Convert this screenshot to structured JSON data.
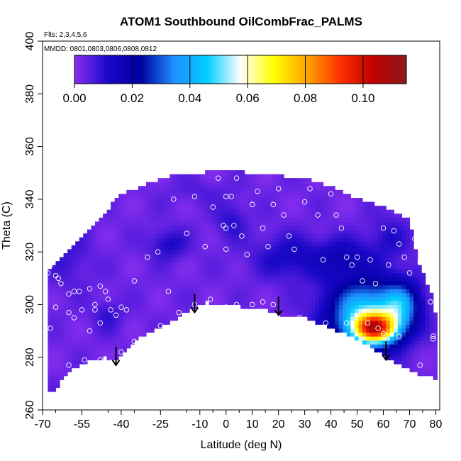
{
  "chart_data": {
    "type": "heatmap",
    "title": "ATOM1 Southbound OilCombFrac_PALMS",
    "flights_label": "Flts: 2,3,4,5,6",
    "mmdd_label": "MMDD: 0801,0803,0806,0808,0812",
    "xlabel": "Latitude (deg N)",
    "ylabel": "Theta (C)",
    "xlim": [
      -70,
      80
    ],
    "ylim": [
      260,
      400
    ],
    "x_ticks": [
      -70,
      -55,
      -40,
      -25,
      -10,
      0,
      10,
      20,
      30,
      40,
      50,
      60,
      70,
      80
    ],
    "y_ticks": [
      260,
      280,
      300,
      320,
      340,
      360,
      380,
      400
    ],
    "colorbar": {
      "min": 0.0,
      "max": 0.115,
      "ticks": [
        0.0,
        0.02,
        0.04,
        0.06,
        0.08,
        0.1
      ],
      "tick_labels": [
        "0.00",
        "0.02",
        "0.04",
        "0.06",
        "0.08",
        "0.10"
      ],
      "colors": [
        "#8c2ff0",
        "#1a08c8",
        "#0000a0",
        "#1e90ff",
        "#00cfff",
        "#ffffff",
        "#ffff00",
        "#ffa500",
        "#ff3000",
        "#c00000",
        "#8b1a1a"
      ]
    },
    "field_background_value": 0.003,
    "anomalies": [
      {
        "lat": 57,
        "theta": 291,
        "value": 0.075,
        "spread_lat": 6,
        "spread_theta": 4
      },
      {
        "lat": 53,
        "theta": 297,
        "value": 0.045,
        "spread_lat": 10,
        "spread_theta": 9
      },
      {
        "lat": 67,
        "theta": 300,
        "value": 0.03,
        "spread_lat": 5,
        "spread_theta": 6
      },
      {
        "lat": 25,
        "theta": 318,
        "value": 0.013,
        "spread_lat": 10,
        "spread_theta": 6
      },
      {
        "lat": 45,
        "theta": 318,
        "value": 0.014,
        "spread_lat": 7,
        "spread_theta": 5
      },
      {
        "lat": -22,
        "theta": 323,
        "value": 0.012,
        "spread_lat": 5,
        "spread_theta": 4
      },
      {
        "lat": 2,
        "theta": 332,
        "value": 0.01,
        "spread_lat": 4,
        "spread_theta": 5
      },
      {
        "lat": -60,
        "theta": 318,
        "value": 0.008,
        "spread_lat": 6,
        "spread_theta": 8
      },
      {
        "lat": 62,
        "theta": 325,
        "value": 0.01,
        "spread_lat": 6,
        "spread_theta": 6
      },
      {
        "lat": -45,
        "theta": 296,
        "value": 0.009,
        "spread_lat": 4,
        "spread_theta": 4
      },
      {
        "lat": -10,
        "theta": 343,
        "value": 0.006,
        "spread_lat": 8,
        "spread_theta": 3
      }
    ],
    "domain_top": [
      {
        "lat": -68,
        "theta": 313
      },
      {
        "lat": -62,
        "theta": 318
      },
      {
        "lat": -55,
        "theta": 325
      },
      {
        "lat": -48,
        "theta": 333
      },
      {
        "lat": -40,
        "theta": 342
      },
      {
        "lat": -32,
        "theta": 345
      },
      {
        "lat": -20,
        "theta": 349
      },
      {
        "lat": 0,
        "theta": 351
      },
      {
        "lat": 20,
        "theta": 349
      },
      {
        "lat": 35,
        "theta": 347
      },
      {
        "lat": 48,
        "theta": 341
      },
      {
        "lat": 60,
        "theta": 337
      },
      {
        "lat": 70,
        "theta": 332
      },
      {
        "lat": 73,
        "theta": 317
      },
      {
        "lat": 78,
        "theta": 305
      },
      {
        "lat": 80,
        "theta": 295
      }
    ],
    "domain_bottom": [
      {
        "lat": -68,
        "theta": 266
      },
      {
        "lat": -65,
        "theta": 268
      },
      {
        "lat": -60,
        "theta": 275
      },
      {
        "lat": -52,
        "theta": 279
      },
      {
        "lat": -46,
        "theta": 280
      },
      {
        "lat": -42,
        "theta": 278
      },
      {
        "lat": -38,
        "theta": 283
      },
      {
        "lat": -32,
        "theta": 288
      },
      {
        "lat": -22,
        "theta": 293
      },
      {
        "lat": -14,
        "theta": 298
      },
      {
        "lat": -8,
        "theta": 301
      },
      {
        "lat": 0,
        "theta": 300
      },
      {
        "lat": 8,
        "theta": 299
      },
      {
        "lat": 16,
        "theta": 298
      },
      {
        "lat": 22,
        "theta": 296
      },
      {
        "lat": 30,
        "theta": 295
      },
      {
        "lat": 40,
        "theta": 291
      },
      {
        "lat": 50,
        "theta": 287
      },
      {
        "lat": 58,
        "theta": 282
      },
      {
        "lat": 66,
        "theta": 277
      },
      {
        "lat": 74,
        "theta": 273
      },
      {
        "lat": 80,
        "theta": 272
      }
    ],
    "arrows": [
      {
        "lat": -42,
        "theta_from": 284,
        "theta_to": 277
      },
      {
        "lat": -12,
        "theta_from": 304,
        "theta_to": 297
      },
      {
        "lat": 20,
        "theta_from": 303,
        "theta_to": 296
      },
      {
        "lat": 61,
        "theta_from": 286,
        "theta_to": 279
      }
    ],
    "sample_points": [
      [
        -68,
        312
      ],
      [
        -67,
        315
      ],
      [
        -66,
        316
      ],
      [
        -65,
        311
      ],
      [
        -64,
        310
      ],
      [
        -63,
        308
      ],
      [
        -60,
        304
      ],
      [
        -58,
        305
      ],
      [
        -56,
        305
      ],
      [
        -52,
        306
      ],
      [
        -50,
        300
      ],
      [
        -48,
        307
      ],
      [
        -46,
        305
      ],
      [
        -45,
        302
      ],
      [
        -44,
        298
      ],
      [
        -42,
        296
      ],
      [
        -40,
        299
      ],
      [
        -38,
        298
      ],
      [
        -35,
        309
      ],
      [
        -30,
        318
      ],
      [
        -26,
        320
      ],
      [
        -22,
        305
      ],
      [
        -20,
        340
      ],
      [
        -15,
        327
      ],
      [
        -12,
        341
      ],
      [
        -8,
        322
      ],
      [
        -5,
        337
      ],
      [
        -3,
        348
      ],
      [
        -1,
        330
      ],
      [
        0,
        341
      ],
      [
        0,
        329
      ],
      [
        0,
        321
      ],
      [
        2,
        341
      ],
      [
        3,
        330
      ],
      [
        4,
        348
      ],
      [
        6,
        326
      ],
      [
        8,
        319
      ],
      [
        10,
        338
      ],
      [
        12,
        343
      ],
      [
        14,
        329
      ],
      [
        16,
        322
      ],
      [
        18,
        338
      ],
      [
        20,
        344
      ],
      [
        22,
        334
      ],
      [
        24,
        326
      ],
      [
        26,
        321
      ],
      [
        30,
        339
      ],
      [
        32,
        344
      ],
      [
        35,
        334
      ],
      [
        37,
        317
      ],
      [
        40,
        342
      ],
      [
        42,
        334
      ],
      [
        44,
        329
      ],
      [
        46,
        318
      ],
      [
        48,
        315
      ],
      [
        50,
        318
      ],
      [
        52,
        309
      ],
      [
        55,
        317
      ],
      [
        57,
        308
      ],
      [
        60,
        329
      ],
      [
        62,
        315
      ],
      [
        64,
        328
      ],
      [
        66,
        323
      ],
      [
        68,
        318
      ],
      [
        70,
        312
      ],
      [
        72,
        325
      ],
      [
        74,
        316
      ],
      [
        76,
        314
      ],
      [
        78,
        301
      ],
      [
        79,
        288
      ],
      [
        79,
        287
      ],
      [
        -67,
        291
      ],
      [
        -65,
        299
      ],
      [
        -60,
        297
      ],
      [
        -58,
        295
      ],
      [
        -55,
        298
      ],
      [
        -52,
        290
      ],
      [
        -50,
        298
      ],
      [
        -48,
        293
      ],
      [
        -40,
        282
      ],
      [
        -35,
        286
      ],
      [
        -25,
        292
      ],
      [
        -18,
        297
      ],
      [
        -12,
        300
      ],
      [
        -6,
        302
      ],
      [
        0,
        299
      ],
      [
        4,
        300
      ],
      [
        10,
        300
      ],
      [
        14,
        301
      ],
      [
        18,
        300
      ],
      [
        28,
        295
      ],
      [
        38,
        293
      ],
      [
        46,
        293
      ],
      [
        54,
        293
      ],
      [
        58,
        291
      ],
      [
        60,
        289
      ],
      [
        66,
        288
      ],
      [
        74,
        277
      ],
      [
        -60,
        277
      ],
      [
        -54,
        279
      ],
      [
        -48,
        279
      ],
      [
        -44,
        278
      ]
    ]
  }
}
